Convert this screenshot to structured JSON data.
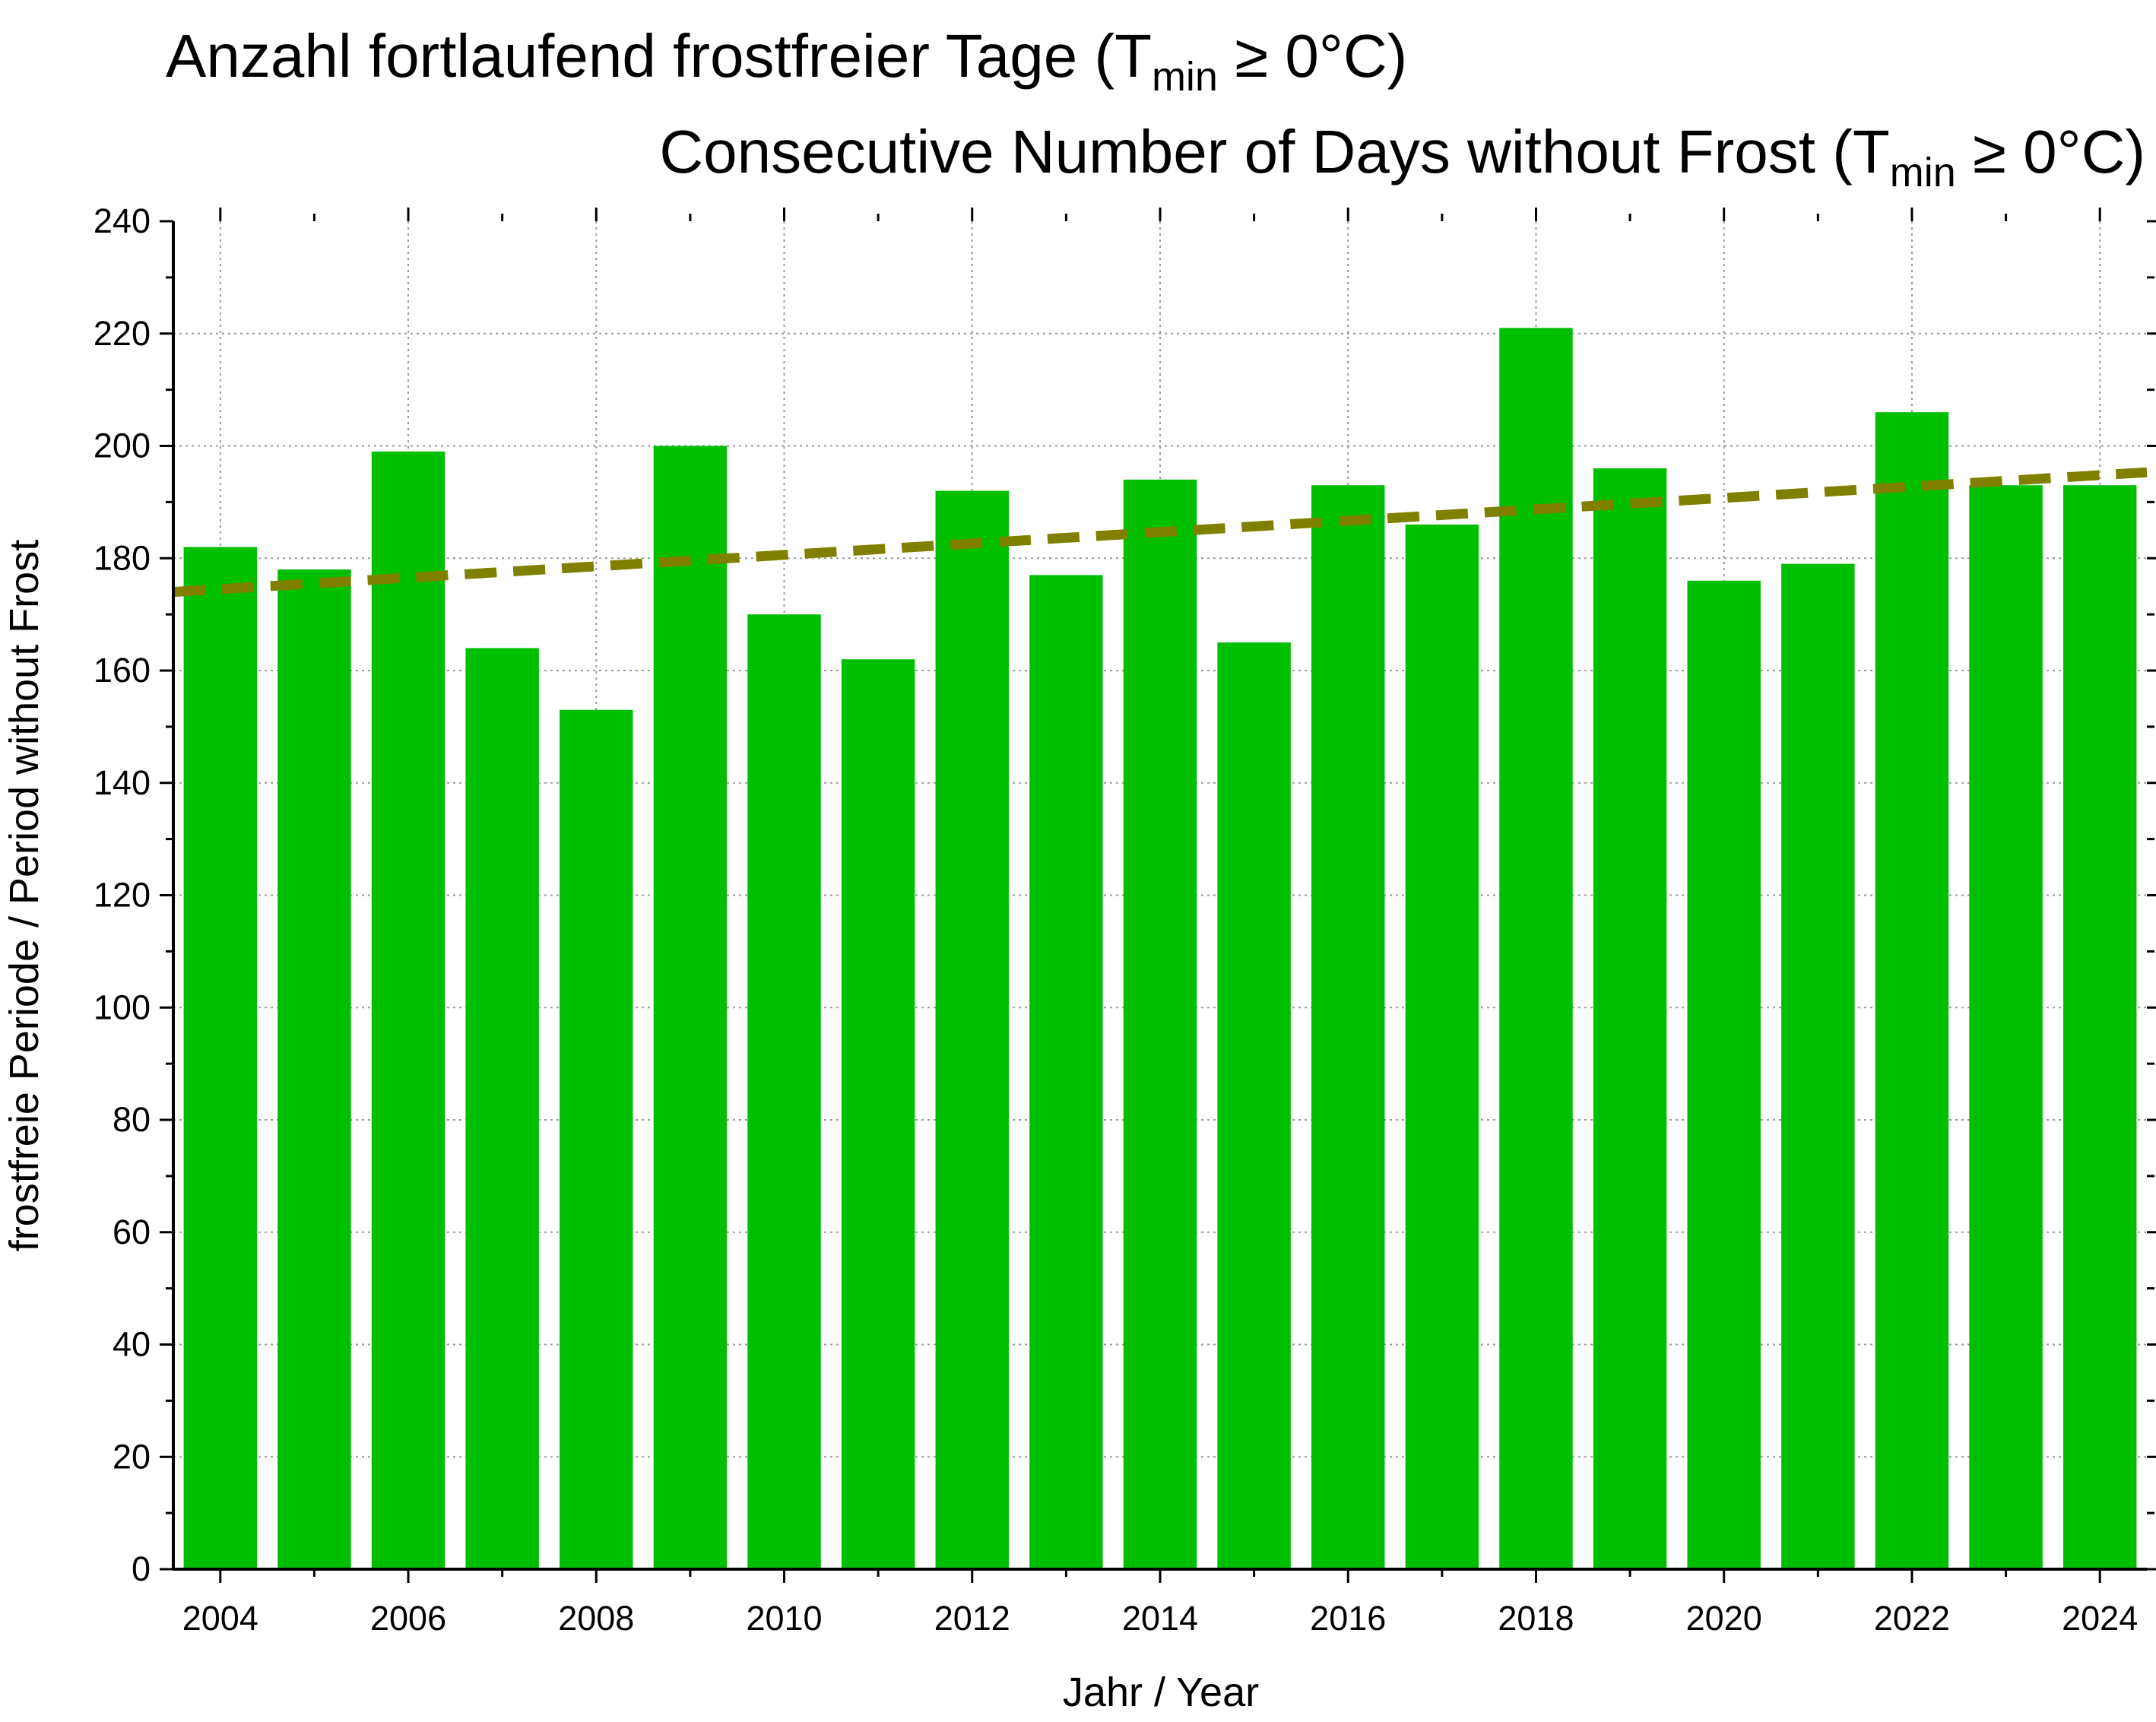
{
  "chart_data": {
    "type": "bar",
    "title": {
      "de_main": "Anzahl fortlaufend frostfreier Tage (T",
      "de_sub": "min",
      "de_tail": " ≥ 0°C)",
      "en_main": "Consecutive Number of Days without Frost (T",
      "en_sub": "min",
      "en_tail": " ≥ 0°C)"
    },
    "xlabel": "Jahr / Year",
    "ylabel": "frostfreie Periode / Period without Frost",
    "categories": [
      2004,
      2005,
      2006,
      2007,
      2008,
      2009,
      2010,
      2011,
      2012,
      2013,
      2014,
      2015,
      2016,
      2017,
      2018,
      2019,
      2020,
      2021,
      2022,
      2023,
      2024
    ],
    "values": [
      182,
      178,
      199,
      164,
      153,
      200,
      170,
      162,
      192,
      177,
      194,
      165,
      193,
      186,
      221,
      196,
      176,
      179,
      206,
      193,
      193
    ],
    "x_tick_labels": [
      "2004",
      "2006",
      "2008",
      "2010",
      "2012",
      "2014",
      "2016",
      "2018",
      "2020",
      "2022",
      "2024"
    ],
    "y_tick_labels": [
      "0",
      "20",
      "40",
      "60",
      "80",
      "100",
      "120",
      "140",
      "160",
      "180",
      "200",
      "220",
      "240"
    ],
    "ylim": [
      0,
      240
    ],
    "xlim": [
      2003.5,
      2024.5
    ],
    "grid": true,
    "trend": {
      "style": "dashed",
      "start": [
        2003.5,
        174.0
      ],
      "end": [
        2024.5,
        195.3
      ]
    },
    "colors": {
      "bar": "#00bf00",
      "trend": "#808000",
      "grid": "#9a9a9a"
    }
  }
}
